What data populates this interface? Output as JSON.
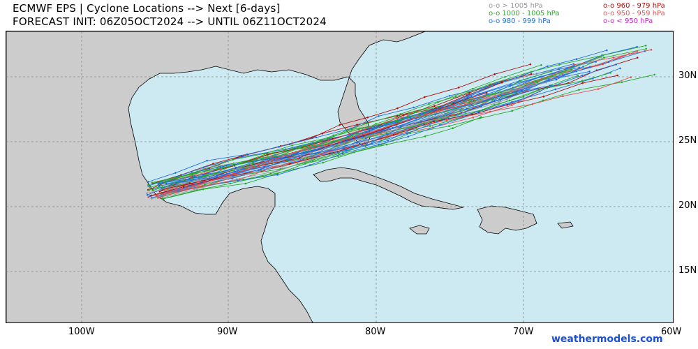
{
  "title": {
    "line1": "ECMWF EPS | Cyclone Locations --> Next [6-days]",
    "line2": "FORECAST INIT: 06Z05OCT2024 --> UNTIL 06Z11OCT2024"
  },
  "legend": [
    {
      "symbol": "o-o",
      "text": "> 1005 hPa",
      "color": "#9a9a9a"
    },
    {
      "symbol": "o-o",
      "text": "1000 - 1005 hPa",
      "color": "#2aa82a"
    },
    {
      "symbol": "o-o",
      "text": "980 - 999 hPa",
      "color": "#1f6fe0"
    },
    {
      "symbol": "o-o",
      "text": "960 - 979 hPa",
      "color": "#b01010"
    },
    {
      "symbol": "o-o",
      "text": "950 - 959 hPa",
      "color": "#e05050"
    },
    {
      "symbol": "o-o",
      "text": "< 950 hPa",
      "color": "#c020c0"
    }
  ],
  "axes": {
    "lat_labels": [
      "30N",
      "25N",
      "20N",
      "15N"
    ],
    "lon_labels": [
      "100W",
      "90W",
      "80W",
      "70W",
      "60W"
    ]
  },
  "colors": {
    "ocean": "#cdeaf2",
    "land": "#cccccc",
    "grid": "#888888"
  },
  "credit": "weathermodels.com"
}
